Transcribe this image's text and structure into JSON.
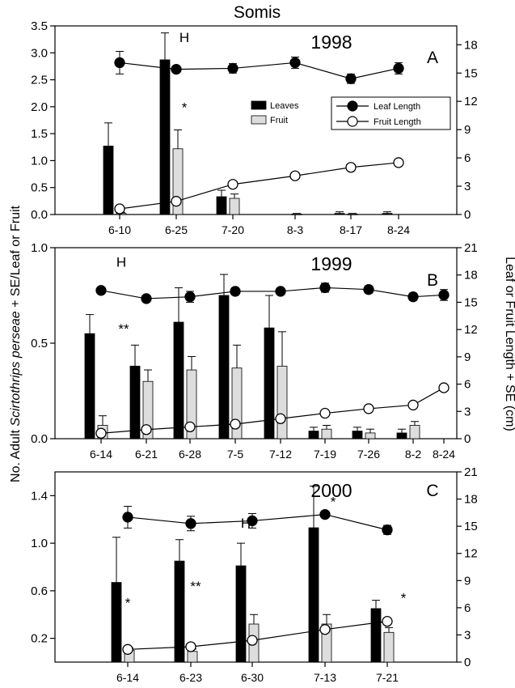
{
  "figure": {
    "title": "Somis",
    "ylabel_left": [
      "No. Adult ",
      "Scirtothrips perseae",
      " + SE/Leaf or Fruit"
    ],
    "ylabel_right": "Leaf or Fruit Length + SE (cm)"
  },
  "legend": {
    "leaves": "Leaves",
    "fruit": "Fruit",
    "leaf_length": "Leaf Length",
    "fruit_length": "Fruit Length"
  },
  "colors": {
    "leaves": "#000000",
    "fruit": "#dddddd",
    "leaf_length": "#000000",
    "fruit_length": "#ffffff"
  },
  "chart_data": [
    {
      "type": "bar",
      "panel": "A",
      "year": "1998",
      "categories": [
        "6-10",
        "6-25",
        "7-20",
        "8-3",
        "8-17",
        "8-24"
      ],
      "ylim_left": [
        0,
        3.5
      ],
      "yticks_left": [
        0.0,
        0.5,
        1.0,
        1.5,
        2.0,
        2.5,
        3.0,
        3.5
      ],
      "ytick_labels_left": [
        "0.0",
        "0.5",
        "1.0",
        "1.5",
        "2.0",
        "2.5",
        "3.0",
        "3.5"
      ],
      "ylim_right": [
        0,
        20
      ],
      "yticks_right": [
        0,
        3,
        6,
        9,
        12,
        15,
        18
      ],
      "ytick_labels_right": [
        "0",
        "3",
        "6",
        "9",
        "12",
        "15",
        "18"
      ],
      "series": [
        {
          "name": "Leaves",
          "kind": "bar",
          "values": [
            1.27,
            2.87,
            0.33,
            0.0,
            0.02,
            0.02
          ],
          "errors": [
            0.43,
            0.5,
            0.12,
            0.0,
            0.03,
            0.03
          ]
        },
        {
          "name": "Fruit",
          "kind": "bar",
          "values": [
            0.02,
            1.22,
            0.3,
            0.01,
            0.01,
            0.0
          ],
          "errors": [
            0.02,
            0.35,
            0.08,
            0.01,
            0.01,
            0.0
          ]
        },
        {
          "name": "Leaf Length",
          "kind": "line",
          "values": [
            16.1,
            15.4,
            15.5,
            16.1,
            14.4,
            15.5
          ],
          "errors": [
            1.2,
            0,
            0.5,
            0.6,
            0.5,
            0.6
          ]
        },
        {
          "name": "Fruit Length",
          "kind": "line",
          "values": [
            0.6,
            1.4,
            3.2,
            4.1,
            5.0,
            5.5
          ],
          "errors": [
            0,
            0,
            0,
            0,
            0,
            0
          ]
        }
      ],
      "annotations": [
        {
          "text": "H",
          "category": "6-25",
          "value": 3.2,
          "dx": 10
        },
        {
          "text": "*",
          "category": "6-25",
          "value": 1.9,
          "dx": 10
        }
      ]
    },
    {
      "type": "bar",
      "panel": "B",
      "year": "1999",
      "categories": [
        "6-14",
        "6-21",
        "6-28",
        "7-5",
        "7-12",
        "7-19",
        "7-26",
        "8-2",
        "8-24"
      ],
      "ylim_left": [
        0,
        1.0
      ],
      "yticks_left": [
        0.0,
        0.5,
        1.0
      ],
      "ytick_labels_left": [
        "0.0",
        "0.5",
        "1.0"
      ],
      "ylim_right": [
        0,
        21
      ],
      "yticks_right": [
        0,
        3,
        6,
        9,
        12,
        15,
        18,
        21
      ],
      "ytick_labels_right": [
        "0",
        "3",
        "6",
        "9",
        "12",
        "15",
        "18",
        "21"
      ],
      "series": [
        {
          "name": "Leaves",
          "kind": "bar",
          "values": [
            0.55,
            0.38,
            0.61,
            0.75,
            0.58,
            0.04,
            0.04,
            0.03,
            0.0
          ],
          "errors": [
            0.1,
            0.11,
            0.18,
            0.11,
            0.17,
            0.02,
            0.02,
            0.02,
            0.0
          ]
        },
        {
          "name": "Fruit",
          "kind": "bar",
          "values": [
            0.07,
            0.3,
            0.36,
            0.37,
            0.38,
            0.05,
            0.03,
            0.07,
            0.0
          ],
          "errors": [
            0.05,
            0.06,
            0.07,
            0.12,
            0.18,
            0.02,
            0.02,
            0.02,
            0.0
          ]
        },
        {
          "name": "Leaf Length",
          "kind": "line",
          "values": [
            16.3,
            15.4,
            15.6,
            16.2,
            16.2,
            16.6,
            16.4,
            15.6,
            15.8
          ],
          "errors": [
            0.3,
            0.2,
            0.6,
            0.4,
            0.3,
            0.5,
            0.4,
            0.4,
            0.6
          ]
        },
        {
          "name": "Fruit Length",
          "kind": "line",
          "values": [
            0.6,
            1.0,
            1.3,
            1.6,
            2.2,
            2.8,
            3.3,
            3.7,
            5.6
          ],
          "errors": [
            0,
            0,
            0,
            0,
            0,
            0,
            0,
            0,
            0
          ]
        }
      ],
      "annotations": [
        {
          "text": "H",
          "category": "6-14",
          "value": 0.9,
          "dx": 25
        },
        {
          "text": "**",
          "category": "6-14",
          "value": 0.55,
          "dx": 28
        }
      ]
    },
    {
      "type": "bar",
      "panel": "C",
      "year": "2000",
      "categories": [
        "6-14",
        "6-23",
        "6-30",
        "7-13",
        "7-21"
      ],
      "ylim_left": [
        0,
        1.6
      ],
      "yticks_left": [
        0.2,
        0.6,
        1.0,
        1.4
      ],
      "ytick_labels_left": [
        "0.2",
        "0.6",
        "1.0",
        "1.4"
      ],
      "ylim_right": [
        0,
        21
      ],
      "yticks_right": [
        0,
        3,
        6,
        9,
        12,
        15,
        18,
        21
      ],
      "ytick_labels_right": [
        "0",
        "3",
        "6",
        "9",
        "12",
        "15",
        "18",
        "21"
      ],
      "series": [
        {
          "name": "Leaves",
          "kind": "bar",
          "values": [
            0.67,
            0.85,
            0.81,
            1.13,
            0.45
          ],
          "errors": [
            0.38,
            0.18,
            0.19,
            0.35,
            0.07
          ]
        },
        {
          "name": "Fruit",
          "kind": "bar",
          "values": [
            0.1,
            0.09,
            0.32,
            0.32,
            0.25
          ],
          "errors": [
            0.02,
            0.02,
            0.08,
            0.08,
            0.04
          ]
        },
        {
          "name": "Leaf Length",
          "kind": "line",
          "values": [
            16.0,
            15.3,
            15.6,
            16.3,
            14.6
          ],
          "errors": [
            1.2,
            0.8,
            0.8,
            0,
            0.5
          ]
        },
        {
          "name": "Fruit Length",
          "kind": "line",
          "values": [
            1.4,
            1.7,
            2.4,
            3.6,
            4.5
          ],
          "errors": [
            0,
            0,
            0,
            0,
            0
          ]
        }
      ],
      "annotations": [
        {
          "text": "*",
          "category": "6-14",
          "value": 0.46,
          "dx": 0
        },
        {
          "text": "**",
          "category": "6-23",
          "value": 0.6,
          "dx": 6
        },
        {
          "text": "H",
          "category": "6-30",
          "value": 1.13,
          "dx": -8
        },
        {
          "text": "*",
          "category": "7-13",
          "value": 1.31,
          "dx": 10
        },
        {
          "text": "*",
          "category": "7-21",
          "value": 0.5,
          "dx": 20
        }
      ]
    }
  ]
}
